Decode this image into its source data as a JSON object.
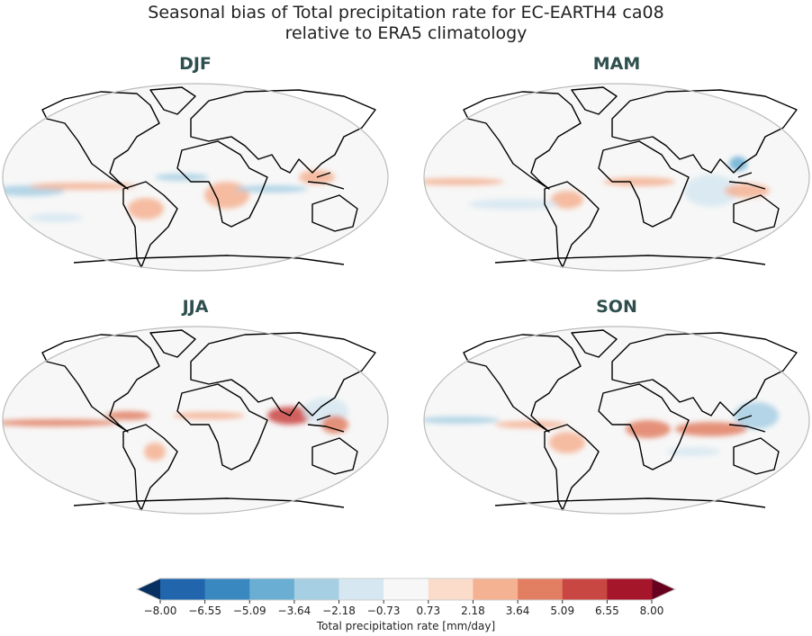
{
  "title": {
    "line1": "Seasonal bias of Total precipitation rate for EC-EARTH4 ca08",
    "line2": "relative to ERA5 climatology"
  },
  "panels": [
    {
      "label": "DJF"
    },
    {
      "label": "MAM"
    },
    {
      "label": "JJA"
    },
    {
      "label": "SON"
    }
  ],
  "colorbar": {
    "label": "Total precipitation rate [mm/day]",
    "ticks": [
      "−8.00",
      "−6.55",
      "−5.09",
      "−3.64",
      "−2.18",
      "−0.73",
      "0.73",
      "2.18",
      "3.64",
      "5.09",
      "6.55",
      "8.00"
    ],
    "under_color": "#053061",
    "over_color": "#67001f",
    "colors": [
      "#2166ac",
      "#3a88c0",
      "#6aaed3",
      "#a7cfe4",
      "#d6e7f1",
      "#f7f7f7",
      "#fbdbc9",
      "#f4b293",
      "#e27f63",
      "#c94742",
      "#a6162a"
    ],
    "extend": "both"
  },
  "map": {
    "background": "#f7f7f7",
    "border_color": "#bbbbbb",
    "coastline_color": "#000000",
    "projection": "Robinson"
  }
}
